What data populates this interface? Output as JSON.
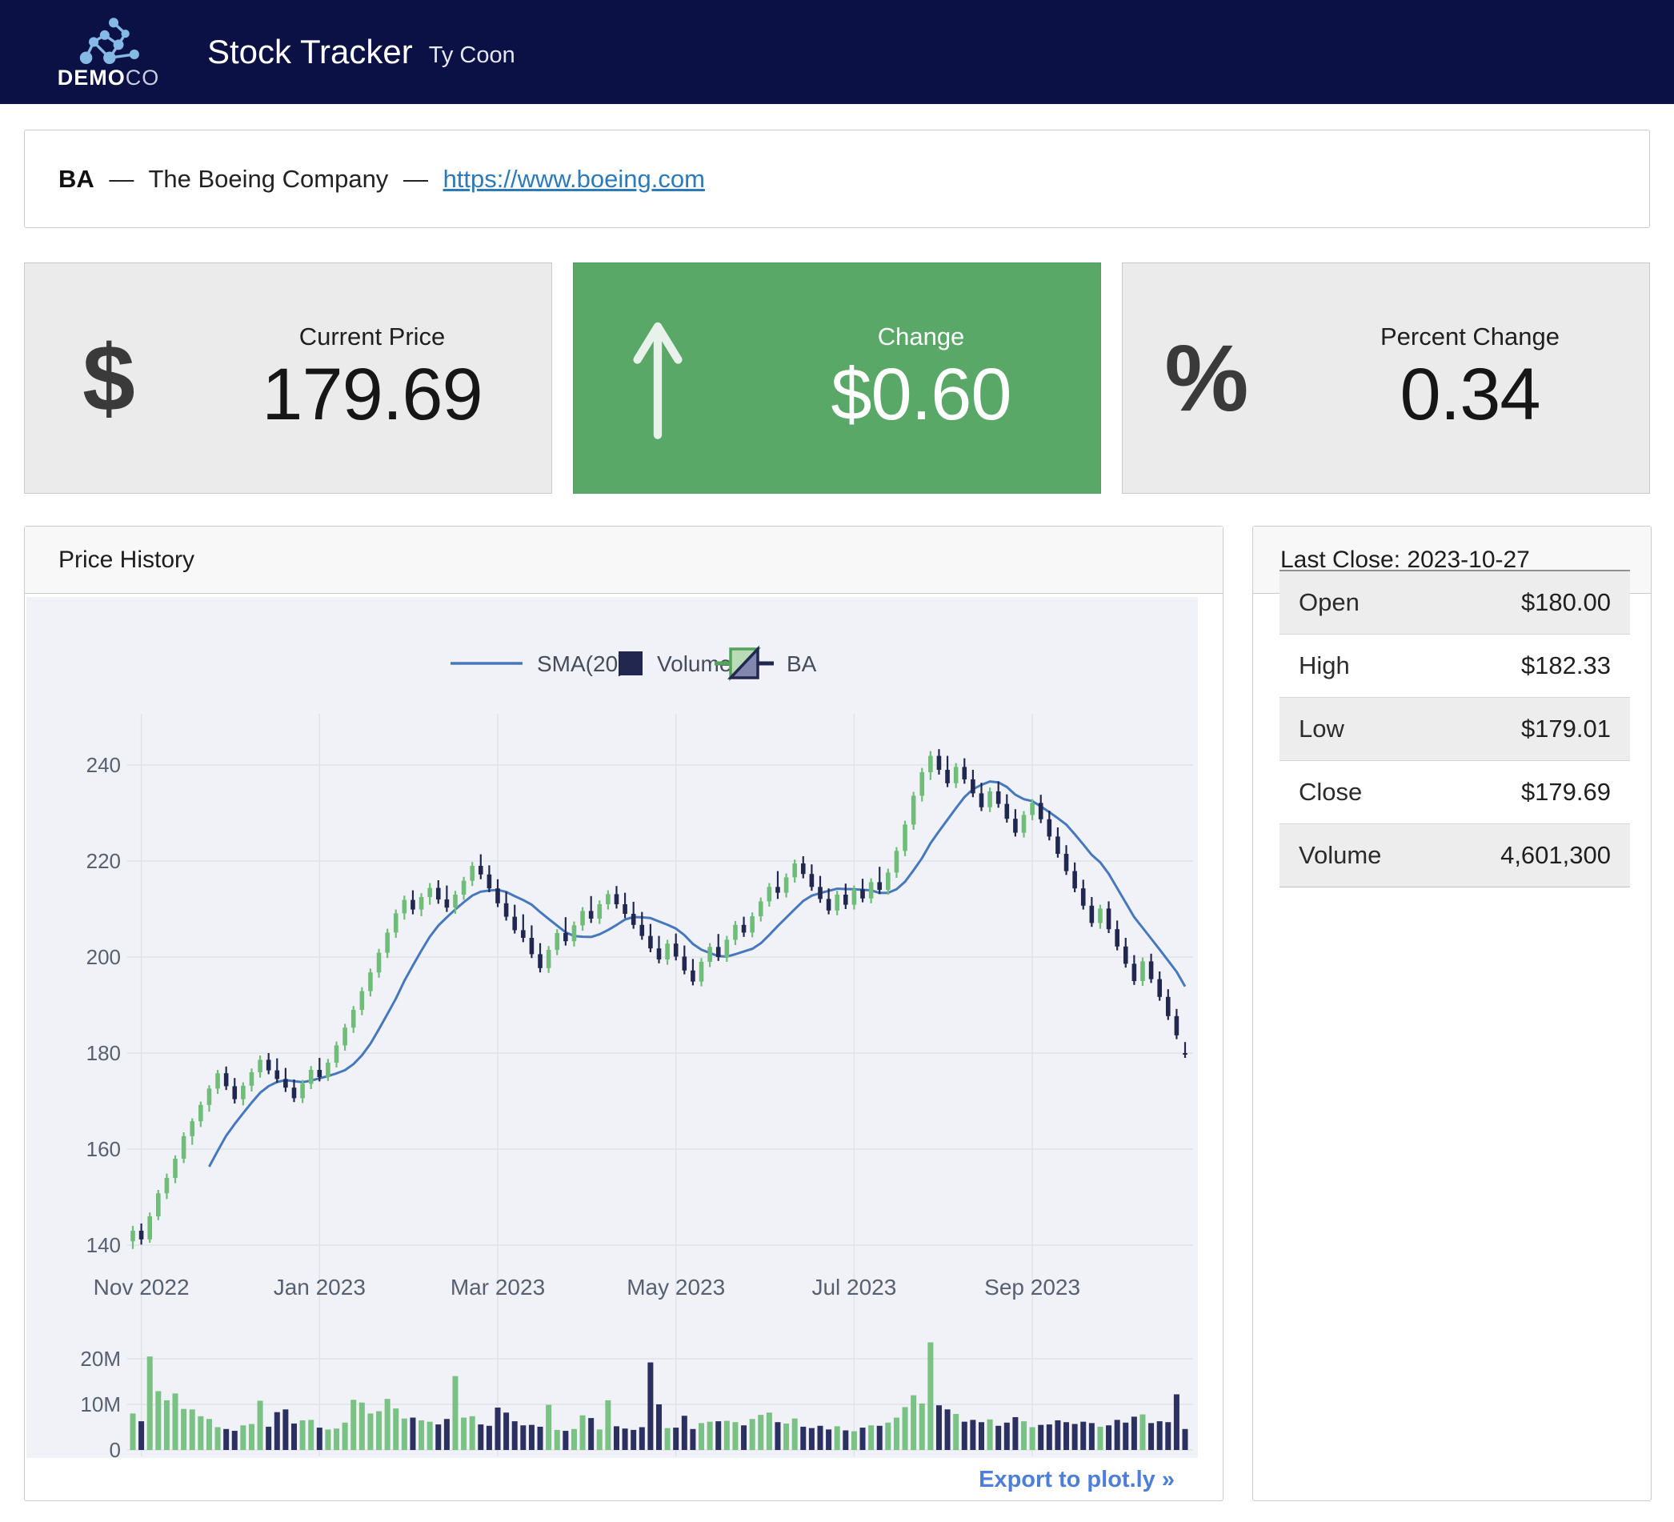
{
  "header": {
    "brand_bold": "DEMO",
    "brand_light": "CO",
    "title": "Stock Tracker",
    "subtitle": "Ty Coon"
  },
  "company": {
    "symbol": "BA",
    "sep": "—",
    "name": "The Boeing Company",
    "url": "https://www.boeing.com"
  },
  "stats": {
    "current_price": {
      "label": "Current Price",
      "value": "179.69",
      "icon": "$"
    },
    "change": {
      "label": "Change",
      "value": "$0.60",
      "direction": "up"
    },
    "percent_change": {
      "label": "Percent Change",
      "value": "0.34",
      "icon": "%"
    }
  },
  "price_history": {
    "title": "Price History",
    "export_label": "Export to plot.ly »",
    "legend": [
      {
        "label": "SMA(20)",
        "type": "line"
      },
      {
        "label": "Volume",
        "type": "square"
      },
      {
        "label": "BA",
        "type": "candle"
      }
    ]
  },
  "last_close": {
    "title": "Last Close: 2023-10-27",
    "rows": [
      {
        "label": "Open",
        "value": "$180.00"
      },
      {
        "label": "High",
        "value": "$182.33"
      },
      {
        "label": "Low",
        "value": "$179.01"
      },
      {
        "label": "Close",
        "value": "$179.69"
      },
      {
        "label": "Volume",
        "value": "4,601,300"
      }
    ]
  },
  "colors": {
    "header_bg": "#0b1045",
    "accent_green": "#5aa868",
    "card_bg": "#ebebeb",
    "link": "#2d7ab8",
    "export_link": "#4d7ed8",
    "chart_bg": "#f0f2f7",
    "grid": "#dfe2ea",
    "up": "#6fbd78",
    "down": "#22274f",
    "vol_up": "#79c283",
    "vol_down": "#2b3060",
    "sma": "#4678bd",
    "axis_text": "#576071",
    "legend_text": "#454c5c",
    "logo_blue": "#85b9e6"
  },
  "chart_data": {
    "type": "candlestick",
    "title": "Price History",
    "symbol": "BA",
    "x_tick_labels": [
      "Nov 2022",
      "Jan 2023",
      "Mar 2023",
      "May 2023",
      "Jul 2023",
      "Sep 2023"
    ],
    "x_tick_indices": [
      1,
      22,
      43,
      64,
      85,
      106
    ],
    "date_range": [
      "2022-10-31",
      "2023-10-27"
    ],
    "price_axis": {
      "ticks": [
        140,
        160,
        180,
        200,
        220,
        240
      ],
      "range": [
        135,
        250
      ]
    },
    "volume_axis": {
      "tick_labels": [
        "0",
        "10M",
        "20M"
      ],
      "tick_values": [
        0,
        10,
        20
      ],
      "unit": "millions",
      "range": [
        0,
        25.5
      ]
    },
    "sma_label": "SMA(20)",
    "sma_window_days": 20,
    "legend_position": "top-center",
    "grid": true,
    "candles_format": [
      "open",
      "high",
      "low",
      "close",
      "volume_millions"
    ],
    "candles": [
      [
        140.8,
        144.0,
        139.2,
        143.0,
        8.0
      ],
      [
        143.0,
        144.5,
        140.1,
        141.2,
        6.3
      ],
      [
        141.2,
        146.8,
        140.5,
        146.0,
        20.5
      ],
      [
        146.0,
        151.5,
        145.2,
        150.8,
        12.9
      ],
      [
        150.8,
        154.9,
        149.6,
        154.0,
        10.9
      ],
      [
        154.0,
        158.7,
        152.9,
        158.0,
        12.4
      ],
      [
        158.0,
        163.5,
        157.1,
        162.7,
        9.0
      ],
      [
        162.7,
        166.4,
        160.9,
        165.8,
        8.9
      ],
      [
        165.8,
        169.9,
        164.6,
        169.2,
        7.4
      ],
      [
        169.2,
        173.3,
        167.8,
        172.6,
        6.8
      ],
      [
        172.6,
        176.5,
        171.5,
        175.8,
        5.0
      ],
      [
        175.8,
        177.2,
        172.3,
        173.1,
        4.6
      ],
      [
        173.1,
        174.8,
        169.5,
        170.4,
        4.2
      ],
      [
        170.4,
        173.9,
        169.1,
        173.2,
        5.4
      ],
      [
        173.2,
        176.8,
        172.0,
        176.0,
        5.7
      ],
      [
        176.0,
        179.5,
        174.9,
        178.6,
        10.8
      ],
      [
        178.6,
        180.0,
        175.6,
        176.4,
        5.1
      ],
      [
        176.4,
        178.9,
        173.8,
        174.6,
        8.3
      ],
      [
        174.6,
        176.9,
        171.9,
        172.8,
        8.9
      ],
      [
        172.8,
        174.5,
        169.8,
        170.6,
        5.8
      ],
      [
        170.6,
        174.4,
        169.6,
        173.6,
        6.5
      ],
      [
        173.6,
        177.3,
        172.5,
        176.5,
        6.6
      ],
      [
        176.5,
        179.0,
        174.1,
        175.0,
        4.9
      ],
      [
        175.0,
        178.8,
        174.2,
        178.0,
        4.5
      ],
      [
        178.0,
        182.4,
        177.0,
        181.6,
        4.7
      ],
      [
        181.6,
        186.1,
        180.5,
        185.3,
        6.0
      ],
      [
        185.3,
        189.8,
        184.2,
        189.0,
        11.0
      ],
      [
        189.0,
        193.7,
        187.9,
        192.9,
        10.4
      ],
      [
        192.9,
        197.6,
        191.8,
        196.8,
        8.0
      ],
      [
        196.8,
        201.7,
        195.7,
        200.9,
        8.5
      ],
      [
        200.9,
        205.9,
        199.8,
        205.1,
        11.2
      ],
      [
        205.1,
        209.9,
        204.0,
        209.1,
        9.1
      ],
      [
        209.1,
        212.8,
        207.8,
        211.9,
        6.9
      ],
      [
        211.9,
        213.9,
        208.9,
        209.9,
        7.1
      ],
      [
        209.9,
        213.3,
        208.5,
        212.5,
        6.5
      ],
      [
        212.5,
        215.4,
        210.9,
        214.4,
        6.2
      ],
      [
        214.4,
        216.0,
        211.1,
        212.0,
        5.6
      ],
      [
        212.0,
        214.9,
        209.4,
        210.3,
        6.8
      ],
      [
        210.3,
        213.8,
        209.0,
        213.0,
        16.2
      ],
      [
        213.0,
        216.7,
        211.9,
        215.9,
        7.1
      ],
      [
        215.9,
        219.8,
        214.8,
        219.0,
        7.4
      ],
      [
        219.0,
        221.4,
        216.2,
        217.2,
        5.6
      ],
      [
        217.2,
        219.1,
        213.5,
        214.3,
        5.3
      ],
      [
        214.3,
        216.2,
        210.4,
        211.2,
        9.3
      ],
      [
        211.2,
        213.6,
        207.6,
        208.4,
        8.2
      ],
      [
        208.4,
        210.9,
        204.9,
        205.6,
        6.3
      ],
      [
        205.6,
        208.9,
        203.1,
        204.0,
        5.4
      ],
      [
        204.0,
        206.6,
        199.8,
        200.6,
        5.5
      ],
      [
        200.6,
        202.9,
        196.8,
        197.7,
        5.1
      ],
      [
        197.7,
        202.3,
        196.7,
        201.5,
        9.9
      ],
      [
        201.5,
        205.8,
        200.4,
        205.0,
        4.4
      ],
      [
        205.0,
        208.3,
        202.4,
        203.3,
        4.2
      ],
      [
        203.3,
        207.4,
        202.2,
        206.6,
        4.6
      ],
      [
        206.6,
        210.4,
        205.5,
        209.6,
        7.6
      ],
      [
        209.6,
        212.7,
        207.1,
        208.0,
        7.0
      ],
      [
        208.0,
        211.8,
        206.9,
        211.0,
        4.5
      ],
      [
        211.0,
        213.9,
        209.9,
        213.1,
        10.9
      ],
      [
        213.1,
        214.8,
        210.1,
        211.0,
        5.2
      ],
      [
        211.0,
        213.4,
        208.1,
        209.0,
        4.7
      ],
      [
        209.0,
        211.5,
        205.9,
        206.7,
        4.4
      ],
      [
        206.7,
        209.4,
        203.6,
        204.4,
        5.0
      ],
      [
        204.4,
        206.9,
        201.0,
        201.8,
        19.2
      ],
      [
        201.8,
        204.4,
        198.7,
        199.5,
        10.0
      ],
      [
        199.5,
        203.6,
        198.4,
        202.8,
        4.8
      ],
      [
        202.8,
        204.9,
        199.3,
        200.1,
        4.9
      ],
      [
        200.1,
        202.4,
        196.4,
        197.2,
        7.5
      ],
      [
        197.2,
        199.6,
        194.1,
        194.9,
        4.6
      ],
      [
        194.9,
        199.8,
        193.9,
        199.0,
        5.9
      ],
      [
        199.0,
        202.9,
        197.9,
        202.1,
        6.2
      ],
      [
        202.1,
        204.8,
        199.2,
        200.0,
        6.3
      ],
      [
        200.0,
        204.4,
        199.0,
        203.6,
        6.4
      ],
      [
        203.6,
        207.5,
        202.5,
        206.7,
        6.1
      ],
      [
        206.7,
        208.4,
        204.2,
        205.1,
        5.4
      ],
      [
        205.1,
        209.3,
        204.1,
        208.5,
        6.8
      ],
      [
        208.5,
        212.4,
        207.4,
        211.6,
        7.7
      ],
      [
        211.6,
        215.4,
        210.5,
        214.6,
        8.2
      ],
      [
        214.6,
        217.9,
        212.1,
        213.4,
        6.1
      ],
      [
        213.4,
        217.4,
        212.4,
        216.6,
        5.8
      ],
      [
        216.6,
        220.3,
        215.5,
        219.5,
        6.9
      ],
      [
        219.5,
        221.0,
        216.4,
        217.3,
        5.1
      ],
      [
        217.3,
        219.3,
        213.8,
        214.6,
        4.8
      ],
      [
        214.6,
        216.9,
        211.3,
        212.1,
        5.3
      ],
      [
        212.1,
        214.3,
        208.9,
        209.7,
        4.5
      ],
      [
        209.7,
        213.8,
        208.7,
        213.0,
        5.2
      ],
      [
        213.0,
        215.3,
        210.0,
        210.9,
        4.3
      ],
      [
        210.9,
        214.9,
        209.9,
        214.1,
        4.1
      ],
      [
        214.1,
        216.3,
        211.4,
        212.2,
        4.9
      ],
      [
        212.2,
        216.4,
        211.2,
        215.6,
        5.4
      ],
      [
        215.6,
        218.8,
        213.1,
        214.0,
        5.3
      ],
      [
        214.0,
        218.4,
        213.0,
        217.6,
        6.0
      ],
      [
        217.6,
        222.9,
        216.5,
        222.1,
        7.1
      ],
      [
        222.1,
        228.4,
        221.0,
        227.6,
        9.4
      ],
      [
        227.6,
        234.4,
        226.5,
        233.6,
        12.0
      ],
      [
        233.6,
        239.4,
        232.4,
        238.5,
        10.2
      ],
      [
        238.5,
        242.9,
        236.9,
        241.9,
        23.6
      ],
      [
        241.9,
        243.3,
        238.0,
        239.0,
        9.8
      ],
      [
        239.0,
        241.9,
        235.4,
        236.2,
        8.9
      ],
      [
        236.2,
        240.4,
        235.2,
        239.6,
        7.9
      ],
      [
        239.6,
        241.4,
        236.1,
        237.0,
        6.2
      ],
      [
        237.0,
        239.0,
        233.3,
        234.1,
        6.6
      ],
      [
        234.1,
        236.3,
        230.4,
        231.2,
        6.1
      ],
      [
        231.2,
        235.3,
        230.2,
        234.5,
        6.7
      ],
      [
        234.5,
        236.6,
        231.1,
        231.9,
        5.3
      ],
      [
        231.9,
        233.9,
        228.0,
        228.8,
        6.0
      ],
      [
        228.8,
        230.8,
        225.1,
        225.9,
        7.2
      ],
      [
        225.9,
        230.4,
        224.9,
        229.6,
        6.3
      ],
      [
        229.6,
        232.9,
        228.5,
        232.1,
        5.0
      ],
      [
        232.1,
        233.8,
        227.9,
        228.7,
        5.5
      ],
      [
        228.7,
        230.5,
        224.3,
        225.1,
        5.6
      ],
      [
        225.1,
        227.0,
        220.7,
        221.5,
        6.5
      ],
      [
        221.5,
        223.3,
        217.1,
        217.9,
        6.1
      ],
      [
        217.9,
        219.7,
        213.5,
        214.3,
        5.7
      ],
      [
        214.3,
        216.1,
        209.9,
        210.7,
        6.2
      ],
      [
        210.7,
        212.5,
        206.3,
        207.1,
        5.9
      ],
      [
        207.1,
        210.9,
        205.9,
        210.1,
        5.1
      ],
      [
        210.1,
        211.6,
        205.0,
        205.8,
        5.4
      ],
      [
        205.8,
        207.6,
        201.4,
        202.2,
        6.6
      ],
      [
        202.2,
        204.0,
        197.8,
        198.6,
        6.0
      ],
      [
        198.6,
        200.4,
        194.2,
        195.0,
        7.3
      ],
      [
        195.0,
        199.9,
        194.0,
        199.1,
        7.8
      ],
      [
        199.1,
        200.7,
        194.6,
        195.4,
        5.9
      ],
      [
        195.4,
        197.0,
        190.9,
        191.7,
        6.3
      ],
      [
        191.7,
        193.3,
        186.9,
        187.7,
        6.1
      ],
      [
        187.7,
        189.2,
        182.9,
        183.7,
        12.2
      ],
      [
        180.0,
        182.3,
        179.0,
        179.7,
        4.6
      ]
    ]
  }
}
